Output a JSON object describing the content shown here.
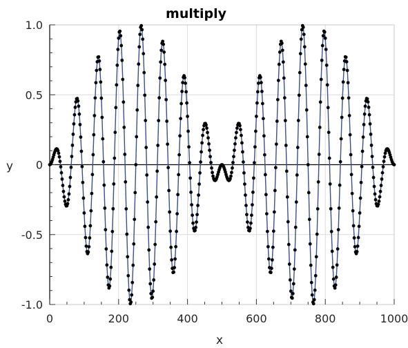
{
  "chart_data": {
    "type": "line",
    "title": "multiply",
    "xlabel": "x",
    "ylabel": "y",
    "xlim": [
      0,
      1000
    ],
    "ylim": [
      -1.0,
      1.0
    ],
    "xticks": [
      0,
      200,
      400,
      600,
      800,
      1000
    ],
    "yticks": [
      -1.0,
      -0.5,
      0,
      0.5,
      1.0
    ],
    "xtick_labels": [
      "0",
      "200",
      "400",
      "600",
      "800",
      "1000"
    ],
    "ytick_labels": [
      "-1.0",
      "-0.5",
      "0",
      "0.5",
      "1.0"
    ],
    "grid": true,
    "series": [
      {
        "function": "sin(2*pi*x/1000) * sin(2*pi*x/62.5)",
        "x_start": 0,
        "x_end": 1000,
        "x_step": 2,
        "line_color": "#3b4f8a",
        "marker_color": "#000000"
      }
    ]
  }
}
